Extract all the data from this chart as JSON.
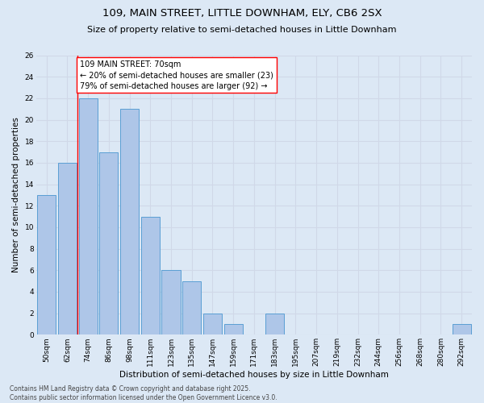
{
  "title1": "109, MAIN STREET, LITTLE DOWNHAM, ELY, CB6 2SX",
  "title2": "Size of property relative to semi-detached houses in Little Downham",
  "xlabel": "Distribution of semi-detached houses by size in Little Downham",
  "ylabel": "Number of semi-detached properties",
  "categories": [
    "50sqm",
    "62sqm",
    "74sqm",
    "86sqm",
    "98sqm",
    "111sqm",
    "123sqm",
    "135sqm",
    "147sqm",
    "159sqm",
    "171sqm",
    "183sqm",
    "195sqm",
    "207sqm",
    "219sqm",
    "232sqm",
    "244sqm",
    "256sqm",
    "268sqm",
    "280sqm",
    "292sqm"
  ],
  "values": [
    13,
    16,
    22,
    17,
    21,
    11,
    6,
    5,
    2,
    1,
    0,
    2,
    0,
    0,
    0,
    0,
    0,
    0,
    0,
    0,
    1
  ],
  "bar_color": "#aec6e8",
  "bar_edge_color": "#5a9fd4",
  "grid_color": "#d0d8e8",
  "background_color": "#dce8f5",
  "annotation_text": "109 MAIN STREET: 70sqm\n← 20% of semi-detached houses are smaller (23)\n79% of semi-detached houses are larger (92) →",
  "redline_x": 1.5,
  "annotation_box_color": "white",
  "annotation_box_edge": "red",
  "footer": "Contains HM Land Registry data © Crown copyright and database right 2025.\nContains public sector information licensed under the Open Government Licence v3.0.",
  "ylim": [
    0,
    26
  ],
  "yticks": [
    0,
    2,
    4,
    6,
    8,
    10,
    12,
    14,
    16,
    18,
    20,
    22,
    24,
    26
  ],
  "title1_fontsize": 9.5,
  "title2_fontsize": 8.0,
  "xlabel_fontsize": 7.5,
  "ylabel_fontsize": 7.5,
  "tick_fontsize": 6.5,
  "annot_fontsize": 7.0,
  "footer_fontsize": 5.5
}
